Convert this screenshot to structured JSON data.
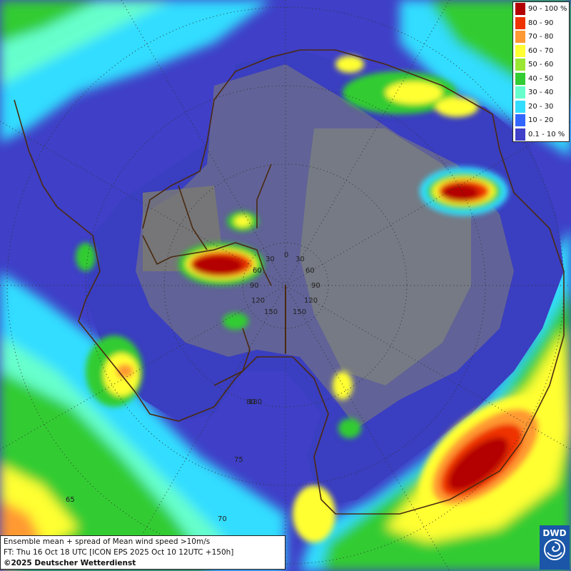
{
  "legend": {
    "items": [
      {
        "label": "90 - 100 %",
        "color": "#b30000"
      },
      {
        "label": "80 - 90",
        "color": "#ee3300"
      },
      {
        "label": "70 - 80",
        "color": "#ff9933"
      },
      {
        "label": "60 - 70",
        "color": "#ffff33"
      },
      {
        "label": "50 - 60",
        "color": "#99e633"
      },
      {
        "label": "40 - 50",
        "color": "#33cc33"
      },
      {
        "label": "30 - 40",
        "color": "#66ffcc"
      },
      {
        "label": "20 - 30",
        "color": "#33ddff"
      },
      {
        "label": "10 - 20",
        "color": "#3366ff"
      },
      {
        "label": "0.1 - 10 %",
        "color": "#4040c8"
      }
    ]
  },
  "caption": {
    "line1": "Ensemble mean + spread of Mean wind speed >10m/s",
    "line2": "FT: Thu 16 Oct 18 UTC [ICON EPS 2025 Oct 10 12UTC +150h]",
    "line3": "©2025 Deutscher Wetterdienst"
  },
  "logo": {
    "text": "DWD"
  },
  "graticule": {
    "longitude_labels": [
      "0",
      "30",
      "30",
      "60",
      "60",
      "90",
      "90",
      "120",
      "120",
      "150",
      "150",
      "180"
    ],
    "latitude_labels": [
      "80",
      "75",
      "70",
      "65"
    ]
  }
}
